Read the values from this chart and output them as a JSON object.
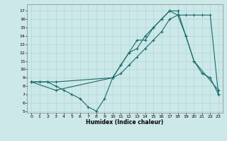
{
  "xlabel": "Humidex (Indice chaleur)",
  "bg_color": "#cce8e8",
  "line_color": "#1a6b6b",
  "line1_x": [
    0,
    1,
    2,
    3,
    4,
    5,
    6,
    7,
    8,
    9,
    10,
    11,
    12,
    13,
    14,
    15,
    16,
    17,
    18,
    19,
    20,
    21,
    22,
    23
  ],
  "line1_y": [
    8.5,
    8.5,
    8.5,
    8.0,
    7.5,
    7.0,
    6.5,
    5.5,
    5.0,
    6.5,
    9.0,
    10.5,
    12.0,
    13.5,
    13.5,
    15.0,
    16.0,
    17.0,
    16.5,
    14.0,
    11.0,
    9.5,
    9.0,
    7.0
  ],
  "line2_x": [
    0,
    1,
    2,
    3,
    10,
    11,
    12,
    13,
    14,
    15,
    16,
    17,
    18,
    19,
    20,
    21,
    22,
    23
  ],
  "line2_y": [
    8.5,
    8.5,
    8.5,
    8.5,
    9.0,
    9.5,
    10.5,
    11.5,
    12.5,
    13.5,
    14.5,
    16.0,
    16.5,
    16.5,
    16.5,
    16.5,
    16.5,
    7.0
  ],
  "line3_x": [
    0,
    3,
    10,
    11,
    12,
    13,
    14,
    15,
    16,
    17,
    18,
    19,
    20,
    23
  ],
  "line3_y": [
    8.5,
    7.5,
    9.0,
    10.5,
    12.0,
    12.5,
    14.0,
    15.0,
    16.0,
    17.0,
    17.0,
    14.0,
    11.0,
    7.5
  ],
  "xlim": [
    -0.5,
    23.5
  ],
  "ylim": [
    4.8,
    17.8
  ],
  "yticks": [
    5,
    6,
    7,
    8,
    9,
    10,
    11,
    12,
    13,
    14,
    15,
    16,
    17
  ],
  "xticks": [
    0,
    1,
    2,
    3,
    4,
    5,
    6,
    7,
    8,
    9,
    10,
    11,
    12,
    13,
    14,
    15,
    16,
    17,
    18,
    19,
    20,
    21,
    22,
    23
  ]
}
